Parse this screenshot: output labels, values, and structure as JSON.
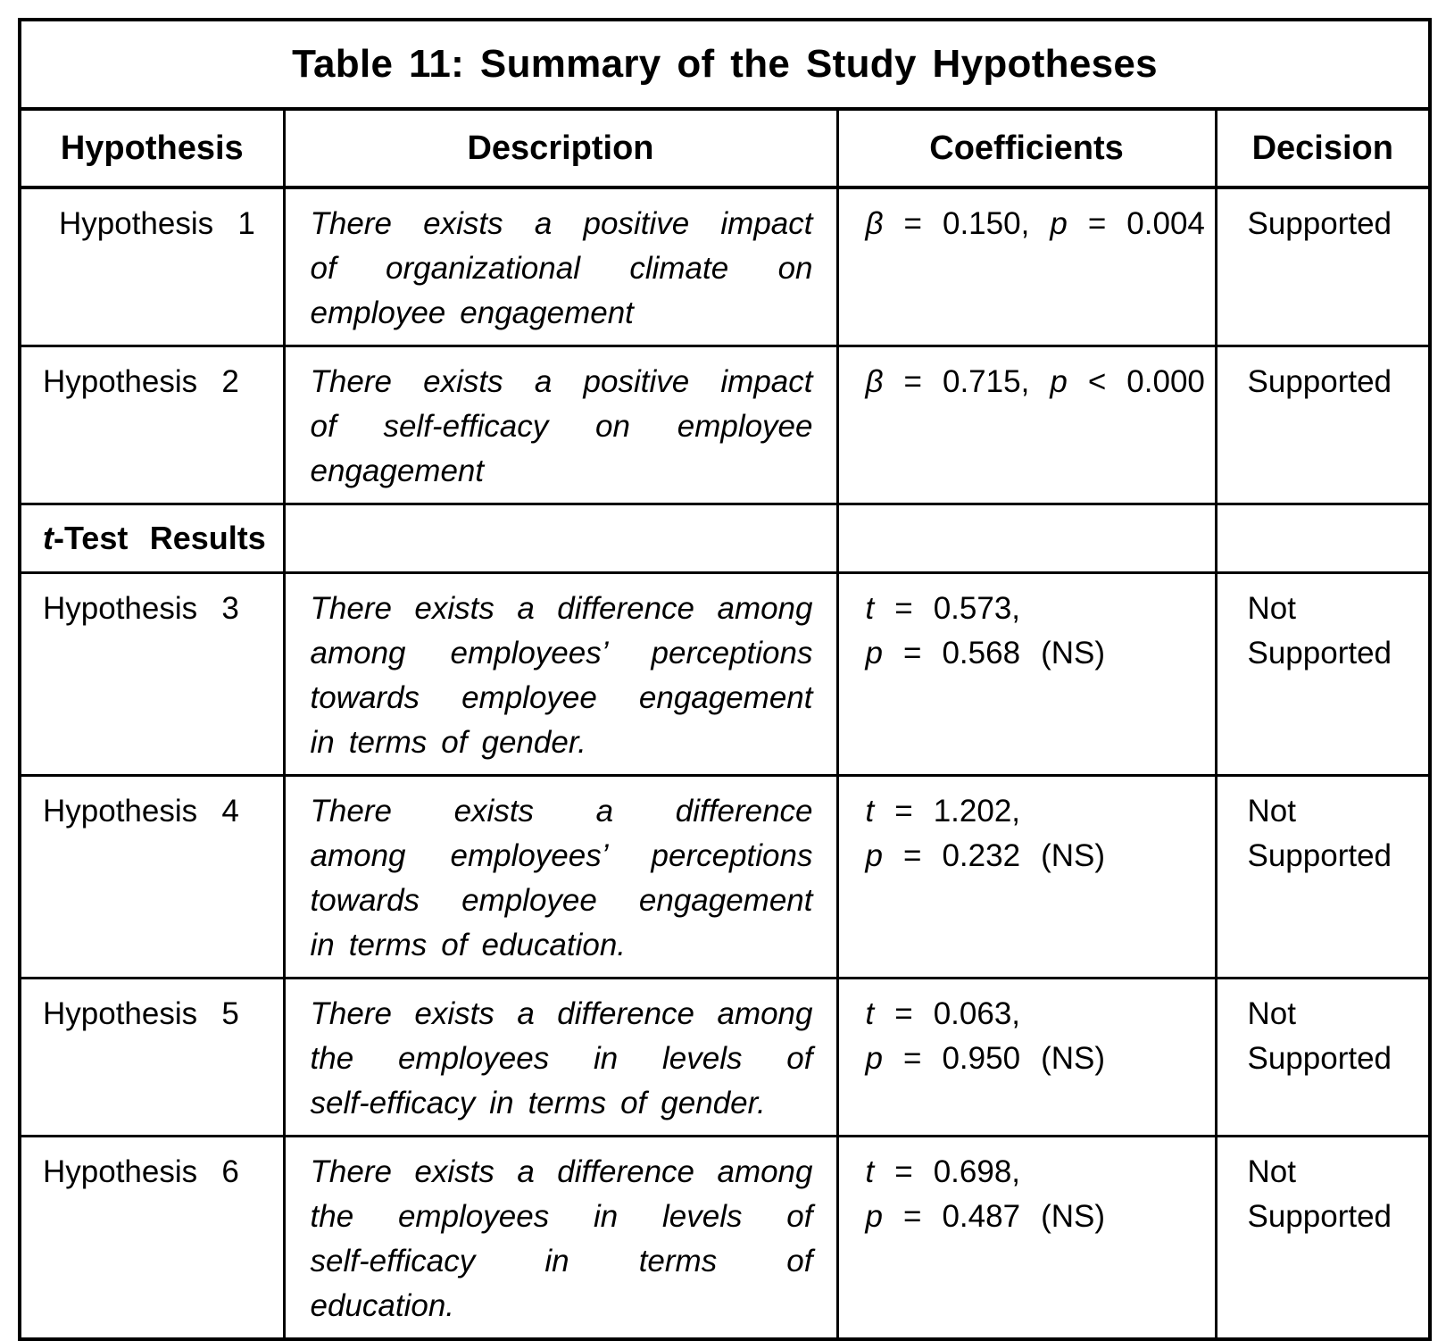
{
  "table": {
    "title": "Table 11: Summary of the Study Hypotheses",
    "columns": [
      "Hypothesis",
      "Description",
      "Coefficients",
      "Decision"
    ],
    "rows": [
      {
        "type": "data",
        "id": "h1",
        "hypothesis": "Hypothesis 1",
        "description_lines": [
          "There exists a positive impact",
          "of organizational climate on",
          "employee engagement"
        ],
        "coefficient_lines": [
          [
            {
              "text": "β",
              "italic": true
            },
            {
              "text": " = 0.150, ",
              "italic": false
            },
            {
              "text": "p",
              "italic": true
            },
            {
              "text": " = 0.004",
              "italic": false
            }
          ]
        ],
        "decision_lines": [
          "Supported"
        ]
      },
      {
        "type": "data",
        "id": "h2",
        "hypothesis": "Hypothesis 2",
        "description_lines": [
          "There exists a positive impact",
          "of self-efficacy on employee",
          "engagement"
        ],
        "coefficient_lines": [
          [
            {
              "text": "β",
              "italic": true
            },
            {
              "text": " = 0.715, ",
              "italic": false
            },
            {
              "text": "p",
              "italic": true
            },
            {
              "text": " < 0.000",
              "italic": false
            }
          ]
        ],
        "decision_lines": [
          "Supported"
        ]
      },
      {
        "type": "section",
        "id": "ttest",
        "label": {
          "italic_prefix": "t",
          "rest": "-Test Results"
        }
      },
      {
        "type": "data",
        "id": "h3",
        "hypothesis": "Hypothesis 3",
        "description_lines": [
          "There exists a difference among",
          "among employees’ perceptions",
          "towards employee engagement",
          "in terms of gender."
        ],
        "coefficient_lines": [
          [
            {
              "text": "t",
              "italic": true
            },
            {
              "text": " = 0.573,",
              "italic": false
            }
          ],
          [
            {
              "text": "p",
              "italic": true
            },
            {
              "text": " = 0.568 (NS)",
              "italic": false
            }
          ]
        ],
        "decision_lines": [
          "Not",
          "Supported"
        ]
      },
      {
        "type": "data",
        "id": "h4",
        "hypothesis": "Hypothesis 4",
        "description_lines": [
          "There exists a difference",
          "among employees’ perceptions",
          "towards employee engagement",
          "in terms of education."
        ],
        "coefficient_lines": [
          [
            {
              "text": "t",
              "italic": true
            },
            {
              "text": " = 1.202,",
              "italic": false
            }
          ],
          [
            {
              "text": "p",
              "italic": true
            },
            {
              "text": " = 0.232 (NS)",
              "italic": false
            }
          ]
        ],
        "decision_lines": [
          "Not",
          "Supported"
        ]
      },
      {
        "type": "data",
        "id": "h5",
        "hypothesis": "Hypothesis 5",
        "description_lines": [
          "There exists a difference among",
          "the employees in levels of",
          "self-efficacy in terms of gender."
        ],
        "coefficient_lines": [
          [
            {
              "text": "t",
              "italic": true
            },
            {
              "text": " = 0.063,",
              "italic": false
            }
          ],
          [
            {
              "text": "p",
              "italic": true
            },
            {
              "text": " = 0.950 (NS)",
              "italic": false
            }
          ]
        ],
        "decision_lines": [
          "Not",
          "Supported"
        ]
      },
      {
        "type": "data",
        "id": "h6",
        "hypothesis": "Hypothesis 6",
        "description_lines": [
          "There exists a difference among",
          "the employees in levels of",
          "self-efficacy in terms of",
          "education."
        ],
        "coefficient_lines": [
          [
            {
              "text": "t",
              "italic": true
            },
            {
              "text": " = 0.698,",
              "italic": false
            }
          ],
          [
            {
              "text": "p",
              "italic": true
            },
            {
              "text": " = 0.487 (NS)",
              "italic": false
            }
          ]
        ],
        "decision_lines": [
          "Not",
          "Supported"
        ]
      }
    ]
  }
}
